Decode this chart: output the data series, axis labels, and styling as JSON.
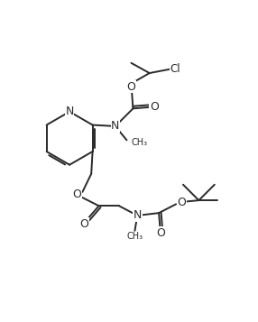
{
  "bg_color": "#ffffff",
  "line_color": "#2a2a2a",
  "line_width": 1.4,
  "font_size": 7.5,
  "figsize": [
    2.86,
    3.57
  ],
  "dpi": 100,
  "xlim": [
    0,
    10
  ],
  "ylim": [
    0,
    12.5
  ]
}
